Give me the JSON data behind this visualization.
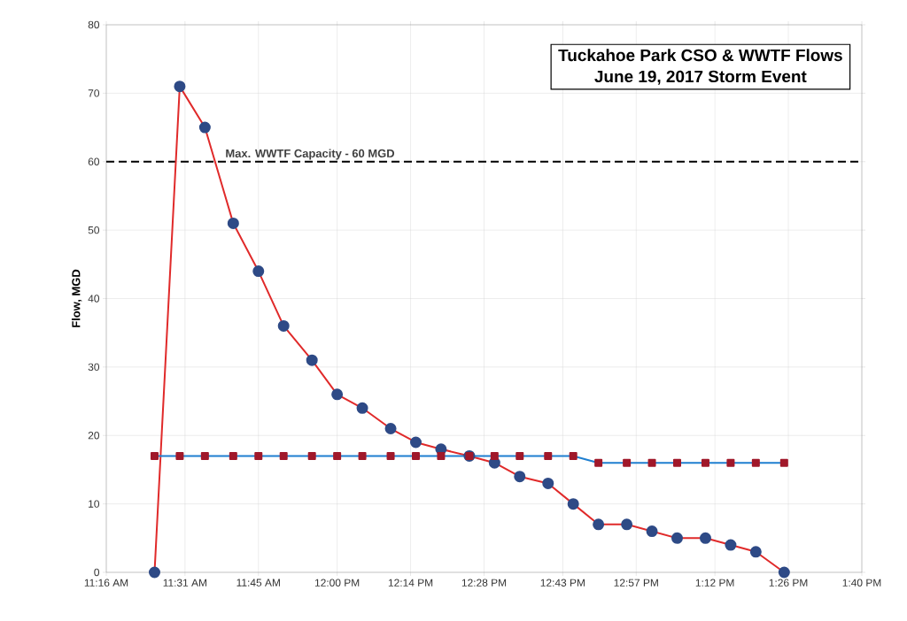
{
  "chart_data": {
    "type": "line",
    "title": "Tuckahoe Park CSO & WWTF Flows",
    "subtitle": "June 19, 2017 Storm Event",
    "ylabel": "Flow, MGD",
    "x": [
      11.42,
      11.5,
      11.58,
      11.67,
      11.75,
      11.83,
      11.92,
      12,
      12.08,
      12.17,
      12.25,
      12.33,
      12.42,
      12.5,
      12.58,
      12.67,
      12.75,
      12.83,
      12.92,
      13,
      13.08,
      13.17,
      13.25,
      13.33,
      13.42
    ],
    "series": [
      {
        "color": "#e02a2a",
        "marker": "circle",
        "values": [
          0,
          71,
          65,
          51,
          44,
          36,
          31,
          26,
          24,
          21,
          19,
          18,
          17,
          16,
          14,
          13,
          10,
          7,
          7,
          6,
          5,
          5,
          4,
          3,
          0
        ]
      },
      {
        "color": "#1f7fd0",
        "marker": "square",
        "values": [
          17,
          17,
          17,
          17,
          17,
          17,
          17,
          17,
          17,
          17,
          17,
          17,
          17,
          17,
          17,
          17,
          17,
          16,
          16,
          16,
          16,
          16,
          16,
          16,
          16
        ]
      }
    ],
    "xlim": [
      11.2667,
      13.6667
    ],
    "ylim": [
      0,
      80
    ],
    "xticks": [
      {
        "value": 11.2667,
        "label": "11:16 AM"
      },
      {
        "value": 11.5167,
        "label": "11:31 AM"
      },
      {
        "value": 11.75,
        "label": "11:45 AM"
      },
      {
        "value": 12.0,
        "label": "12:00 PM"
      },
      {
        "value": 12.2333,
        "label": "12:14 PM"
      },
      {
        "value": 12.4667,
        "label": "12:28 PM"
      },
      {
        "value": 12.7167,
        "label": "12:43 PM"
      },
      {
        "value": 12.95,
        "label": "12:57 PM"
      },
      {
        "value": 13.2,
        "label": "1:12 PM"
      },
      {
        "value": 13.4333,
        "label": "1:26 PM"
      },
      {
        "value": 13.6667,
        "label": "1:40 PM"
      }
    ],
    "yticks": [
      0,
      10,
      20,
      30,
      40,
      50,
      60,
      70,
      80
    ],
    "ref_lines": [
      {
        "axis": "y",
        "value": 60,
        "label": "Max. WWTF Capacity - 60 MGD",
        "color": "#000000",
        "line_style": "dashed"
      }
    ],
    "grid": true
  }
}
